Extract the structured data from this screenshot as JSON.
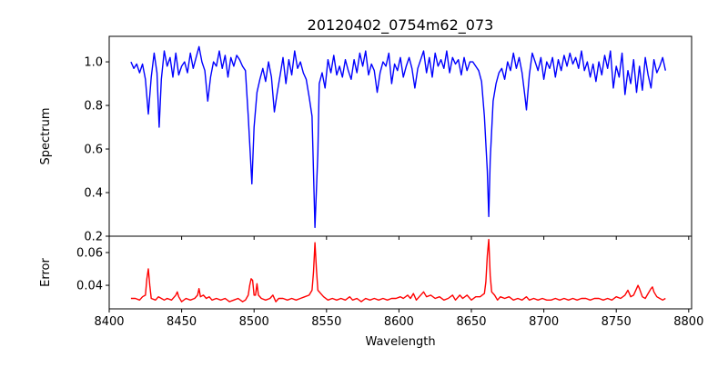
{
  "chart_data": [
    {
      "type": "line",
      "title": "20120402_0754m62_073",
      "xlabel": "",
      "ylabel": "Spectrum",
      "xlim": [
        8400,
        8802
      ],
      "ylim": [
        0.2,
        1.117
      ],
      "xticks": [
        8400,
        8450,
        8500,
        8550,
        8600,
        8650,
        8700,
        8750,
        8800
      ],
      "yticks": [
        0.2,
        0.4,
        0.6,
        0.8,
        1.0
      ],
      "ytick_labels": [
        "0.2",
        "0.4",
        "0.6",
        "0.8",
        "1.0"
      ],
      "color": "#0000ff",
      "points": [
        [
          8415,
          1.0
        ],
        [
          8417,
          0.97
        ],
        [
          8419,
          0.99
        ],
        [
          8421,
          0.95
        ],
        [
          8423,
          0.99
        ],
        [
          8425,
          0.92
        ],
        [
          8427,
          0.76
        ],
        [
          8429,
          0.93
        ],
        [
          8431,
          1.04
        ],
        [
          8433,
          0.95
        ],
        [
          8434.5,
          0.7
        ],
        [
          8436,
          0.92
        ],
        [
          8438,
          1.05
        ],
        [
          8440,
          0.98
        ],
        [
          8442,
          1.02
        ],
        [
          8444,
          0.93
        ],
        [
          8446,
          1.04
        ],
        [
          8448,
          0.94
        ],
        [
          8450,
          0.98
        ],
        [
          8452,
          1.0
        ],
        [
          8454,
          0.95
        ],
        [
          8456,
          1.04
        ],
        [
          8458,
          0.97
        ],
        [
          8460,
          1.02
        ],
        [
          8462,
          1.07
        ],
        [
          8464,
          1.0
        ],
        [
          8466,
          0.96
        ],
        [
          8468,
          0.82
        ],
        [
          8470,
          0.93
        ],
        [
          8472,
          1.0
        ],
        [
          8474,
          0.98
        ],
        [
          8476,
          1.05
        ],
        [
          8478,
          0.97
        ],
        [
          8480,
          1.03
        ],
        [
          8482,
          0.93
        ],
        [
          8484,
          1.02
        ],
        [
          8486,
          0.98
        ],
        [
          8488,
          1.03
        ],
        [
          8490,
          1.01
        ],
        [
          8492,
          0.98
        ],
        [
          8494,
          0.96
        ],
        [
          8496,
          0.75
        ],
        [
          8498.5,
          0.44
        ],
        [
          8500,
          0.7
        ],
        [
          8502,
          0.86
        ],
        [
          8504,
          0.92
        ],
        [
          8506,
          0.97
        ],
        [
          8508,
          0.91
        ],
        [
          8510,
          1.0
        ],
        [
          8512,
          0.93
        ],
        [
          8514,
          0.77
        ],
        [
          8516,
          0.86
        ],
        [
          8518,
          0.94
        ],
        [
          8520,
          1.02
        ],
        [
          8522,
          0.9
        ],
        [
          8524,
          1.01
        ],
        [
          8526,
          0.94
        ],
        [
          8528,
          1.05
        ],
        [
          8530,
          0.97
        ],
        [
          8532,
          1.0
        ],
        [
          8534,
          0.95
        ],
        [
          8536,
          0.92
        ],
        [
          8538,
          0.84
        ],
        [
          8540,
          0.75
        ],
        [
          8542,
          0.24
        ],
        [
          8544,
          0.58
        ],
        [
          8545,
          0.9
        ],
        [
          8547,
          0.95
        ],
        [
          8549,
          0.88
        ],
        [
          8551,
          1.01
        ],
        [
          8553,
          0.95
        ],
        [
          8555,
          1.03
        ],
        [
          8557,
          0.94
        ],
        [
          8559,
          0.98
        ],
        [
          8561,
          0.93
        ],
        [
          8563,
          1.01
        ],
        [
          8565,
          0.96
        ],
        [
          8567,
          0.92
        ],
        [
          8569,
          1.01
        ],
        [
          8571,
          0.95
        ],
        [
          8573,
          1.04
        ],
        [
          8575,
          0.98
        ],
        [
          8577,
          1.05
        ],
        [
          8579,
          0.94
        ],
        [
          8581,
          0.99
        ],
        [
          8583,
          0.96
        ],
        [
          8585,
          0.86
        ],
        [
          8587,
          0.95
        ],
        [
          8589,
          1.0
        ],
        [
          8591,
          0.98
        ],
        [
          8593,
          1.04
        ],
        [
          8595,
          0.9
        ],
        [
          8597,
          0.99
        ],
        [
          8599,
          0.96
        ],
        [
          8601,
          1.02
        ],
        [
          8603,
          0.93
        ],
        [
          8605,
          0.98
        ],
        [
          8607,
          1.02
        ],
        [
          8609,
          0.97
        ],
        [
          8611,
          0.88
        ],
        [
          8613,
          0.97
        ],
        [
          8615,
          1.01
        ],
        [
          8617,
          1.05
        ],
        [
          8619,
          0.95
        ],
        [
          8621,
          1.02
        ],
        [
          8623,
          0.93
        ],
        [
          8625,
          1.04
        ],
        [
          8627,
          0.98
        ],
        [
          8629,
          1.01
        ],
        [
          8631,
          0.97
        ],
        [
          8633,
          1.05
        ],
        [
          8635,
          0.95
        ],
        [
          8637,
          1.02
        ],
        [
          8639,
          0.99
        ],
        [
          8641,
          1.01
        ],
        [
          8643,
          0.94
        ],
        [
          8645,
          1.02
        ],
        [
          8647,
          0.96
        ],
        [
          8649,
          1.0
        ],
        [
          8651,
          1.0
        ],
        [
          8653,
          0.98
        ],
        [
          8655,
          0.96
        ],
        [
          8657,
          0.91
        ],
        [
          8659,
          0.75
        ],
        [
          8661,
          0.5
        ],
        [
          8662,
          0.29
        ],
        [
          8663,
          0.55
        ],
        [
          8665,
          0.82
        ],
        [
          8667,
          0.9
        ],
        [
          8669,
          0.95
        ],
        [
          8671,
          0.97
        ],
        [
          8673,
          0.92
        ],
        [
          8675,
          1.0
        ],
        [
          8677,
          0.96
        ],
        [
          8679,
          1.04
        ],
        [
          8681,
          0.97
        ],
        [
          8683,
          1.02
        ],
        [
          8685,
          0.95
        ],
        [
          8687,
          0.84
        ],
        [
          8688,
          0.78
        ],
        [
          8690,
          0.94
        ],
        [
          8692,
          1.04
        ],
        [
          8694,
          1.0
        ],
        [
          8696,
          0.96
        ],
        [
          8698,
          1.02
        ],
        [
          8700,
          0.92
        ],
        [
          8702,
          1.0
        ],
        [
          8704,
          0.97
        ],
        [
          8706,
          1.02
        ],
        [
          8708,
          0.93
        ],
        [
          8710,
          1.01
        ],
        [
          8712,
          0.96
        ],
        [
          8714,
          1.03
        ],
        [
          8716,
          0.98
        ],
        [
          8718,
          1.04
        ],
        [
          8720,
          0.99
        ],
        [
          8722,
          1.02
        ],
        [
          8724,
          0.97
        ],
        [
          8726,
          1.05
        ],
        [
          8728,
          0.96
        ],
        [
          8730,
          1.0
        ],
        [
          8732,
          0.93
        ],
        [
          8734,
          0.99
        ],
        [
          8736,
          0.91
        ],
        [
          8738,
          1.0
        ],
        [
          8740,
          0.94
        ],
        [
          8742,
          1.03
        ],
        [
          8744,
          0.97
        ],
        [
          8746,
          1.05
        ],
        [
          8748,
          0.88
        ],
        [
          8750,
          0.98
        ],
        [
          8752,
          0.93
        ],
        [
          8754,
          1.04
        ],
        [
          8756,
          0.85
        ],
        [
          8758,
          0.96
        ],
        [
          8760,
          0.9
        ],
        [
          8762,
          1.01
        ],
        [
          8764,
          0.86
        ],
        [
          8766,
          0.98
        ],
        [
          8768,
          0.87
        ],
        [
          8770,
          1.02
        ],
        [
          8772,
          0.94
        ],
        [
          8774,
          0.88
        ],
        [
          8776,
          1.01
        ],
        [
          8778,
          0.95
        ],
        [
          8780,
          0.98
        ],
        [
          8782,
          1.02
        ],
        [
          8784,
          0.96
        ]
      ]
    },
    {
      "type": "line",
      "title": "",
      "xlabel": "Wavelength",
      "ylabel": "Error",
      "xlim": [
        8400,
        8802
      ],
      "ylim": [
        0.0256,
        0.07
      ],
      "xticks": [
        8400,
        8450,
        8500,
        8550,
        8600,
        8650,
        8700,
        8750,
        8800
      ],
      "xtick_labels": [
        "8400",
        "8450",
        "8500",
        "8550",
        "8600",
        "8650",
        "8700",
        "8750",
        "8800"
      ],
      "yticks": [
        0.04,
        0.06
      ],
      "ytick_labels": [
        "0.04",
        "0.06"
      ],
      "color": "#ff0000",
      "points": [
        [
          8415,
          0.032
        ],
        [
          8418,
          0.032
        ],
        [
          8421,
          0.031
        ],
        [
          8423,
          0.033
        ],
        [
          8425,
          0.034
        ],
        [
          8426,
          0.044
        ],
        [
          8427,
          0.05
        ],
        [
          8428,
          0.04
        ],
        [
          8429,
          0.032
        ],
        [
          8432,
          0.031
        ],
        [
          8434,
          0.033
        ],
        [
          8436,
          0.032
        ],
        [
          8438,
          0.031
        ],
        [
          8440,
          0.032
        ],
        [
          8443,
          0.031
        ],
        [
          8446,
          0.034
        ],
        [
          8447,
          0.036
        ],
        [
          8448,
          0.033
        ],
        [
          8450,
          0.03
        ],
        [
          8453,
          0.032
        ],
        [
          8456,
          0.031
        ],
        [
          8459,
          0.032
        ],
        [
          8461,
          0.034
        ],
        [
          8462,
          0.038
        ],
        [
          8463,
          0.033
        ],
        [
          8465,
          0.034
        ],
        [
          8467,
          0.032
        ],
        [
          8469,
          0.033
        ],
        [
          8471,
          0.031
        ],
        [
          8474,
          0.032
        ],
        [
          8477,
          0.031
        ],
        [
          8480,
          0.032
        ],
        [
          8483,
          0.03
        ],
        [
          8486,
          0.031
        ],
        [
          8489,
          0.032
        ],
        [
          8492,
          0.03
        ],
        [
          8494,
          0.031
        ],
        [
          8496,
          0.034
        ],
        [
          8497,
          0.04
        ],
        [
          8498,
          0.044
        ],
        [
          8499,
          0.043
        ],
        [
          8500,
          0.034
        ],
        [
          8501,
          0.034
        ],
        [
          8502,
          0.041
        ],
        [
          8503,
          0.034
        ],
        [
          8505,
          0.032
        ],
        [
          8508,
          0.031
        ],
        [
          8511,
          0.032
        ],
        [
          8513,
          0.034
        ],
        [
          8515,
          0.03
        ],
        [
          8517,
          0.032
        ],
        [
          8520,
          0.032
        ],
        [
          8523,
          0.031
        ],
        [
          8526,
          0.032
        ],
        [
          8529,
          0.031
        ],
        [
          8532,
          0.032
        ],
        [
          8535,
          0.033
        ],
        [
          8538,
          0.034
        ],
        [
          8540,
          0.037
        ],
        [
          8541,
          0.048
        ],
        [
          8542,
          0.066
        ],
        [
          8543,
          0.05
        ],
        [
          8544,
          0.037
        ],
        [
          8546,
          0.035
        ],
        [
          8548,
          0.033
        ],
        [
          8551,
          0.031
        ],
        [
          8554,
          0.032
        ],
        [
          8557,
          0.031
        ],
        [
          8560,
          0.032
        ],
        [
          8563,
          0.031
        ],
        [
          8566,
          0.033
        ],
        [
          8568,
          0.031
        ],
        [
          8571,
          0.032
        ],
        [
          8574,
          0.03
        ],
        [
          8577,
          0.032
        ],
        [
          8580,
          0.031
        ],
        [
          8583,
          0.032
        ],
        [
          8586,
          0.031
        ],
        [
          8589,
          0.032
        ],
        [
          8592,
          0.031
        ],
        [
          8595,
          0.032
        ],
        [
          8598,
          0.032
        ],
        [
          8601,
          0.033
        ],
        [
          8603,
          0.032
        ],
        [
          8606,
          0.034
        ],
        [
          8608,
          0.032
        ],
        [
          8610,
          0.035
        ],
        [
          8612,
          0.031
        ],
        [
          8614,
          0.033
        ],
        [
          8617,
          0.036
        ],
        [
          8619,
          0.033
        ],
        [
          8622,
          0.034
        ],
        [
          8625,
          0.032
        ],
        [
          8628,
          0.033
        ],
        [
          8631,
          0.031
        ],
        [
          8634,
          0.032
        ],
        [
          8637,
          0.034
        ],
        [
          8639,
          0.031
        ],
        [
          8642,
          0.034
        ],
        [
          8644,
          0.032
        ],
        [
          8647,
          0.034
        ],
        [
          8650,
          0.031
        ],
        [
          8653,
          0.033
        ],
        [
          8656,
          0.033
        ],
        [
          8659,
          0.035
        ],
        [
          8660,
          0.042
        ],
        [
          8661,
          0.058
        ],
        [
          8662,
          0.068
        ],
        [
          8663,
          0.046
        ],
        [
          8664,
          0.036
        ],
        [
          8666,
          0.034
        ],
        [
          8668,
          0.031
        ],
        [
          8670,
          0.033
        ],
        [
          8673,
          0.032
        ],
        [
          8676,
          0.033
        ],
        [
          8679,
          0.031
        ],
        [
          8682,
          0.032
        ],
        [
          8685,
          0.031
        ],
        [
          8688,
          0.033
        ],
        [
          8690,
          0.031
        ],
        [
          8693,
          0.032
        ],
        [
          8696,
          0.031
        ],
        [
          8699,
          0.032
        ],
        [
          8702,
          0.031
        ],
        [
          8705,
          0.031
        ],
        [
          8708,
          0.032
        ],
        [
          8711,
          0.031
        ],
        [
          8714,
          0.032
        ],
        [
          8717,
          0.031
        ],
        [
          8720,
          0.032
        ],
        [
          8723,
          0.031
        ],
        [
          8726,
          0.032
        ],
        [
          8729,
          0.032
        ],
        [
          8732,
          0.031
        ],
        [
          8735,
          0.032
        ],
        [
          8738,
          0.032
        ],
        [
          8741,
          0.031
        ],
        [
          8744,
          0.032
        ],
        [
          8747,
          0.031
        ],
        [
          8750,
          0.033
        ],
        [
          8753,
          0.032
        ],
        [
          8756,
          0.034
        ],
        [
          8758,
          0.037
        ],
        [
          8760,
          0.033
        ],
        [
          8762,
          0.034
        ],
        [
          8764,
          0.038
        ],
        [
          8765,
          0.04
        ],
        [
          8766,
          0.038
        ],
        [
          8768,
          0.033
        ],
        [
          8770,
          0.032
        ],
        [
          8772,
          0.035
        ],
        [
          8774,
          0.038
        ],
        [
          8775,
          0.039
        ],
        [
          8776,
          0.036
        ],
        [
          8778,
          0.033
        ],
        [
          8780,
          0.032
        ],
        [
          8782,
          0.031
        ],
        [
          8784,
          0.032
        ]
      ]
    }
  ]
}
